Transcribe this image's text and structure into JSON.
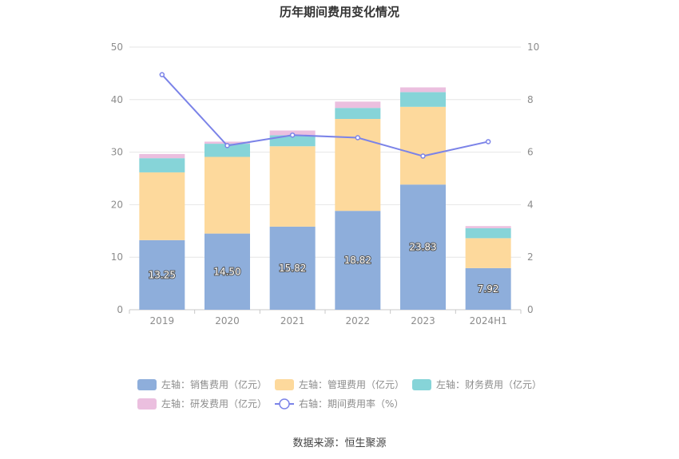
{
  "chart_data": {
    "type": "bar",
    "title": "历年期间费用变化情况",
    "categories": [
      "2019",
      "2020",
      "2021",
      "2022",
      "2023",
      "2024H1"
    ],
    "y_left": {
      "min": 0,
      "max": 50,
      "ticks": [
        "0",
        "10",
        "20",
        "30",
        "40",
        "50"
      ]
    },
    "y_right": {
      "min": 0,
      "max": 10,
      "ticks": [
        "0",
        "2",
        "4",
        "6",
        "8",
        "10"
      ]
    },
    "grid": true,
    "legend_position": "bottom",
    "series": [
      {
        "name": "左轴：销售费用（亿元）",
        "type": "bar",
        "stack": "total",
        "color": "#8eaedb",
        "values": [
          13.25,
          14.5,
          15.82,
          18.82,
          23.83,
          7.92
        ],
        "labels": [
          "13.25",
          "14.50",
          "15.82",
          "18.82",
          "23.83",
          "7.92"
        ]
      },
      {
        "name": "左轴：管理费用（亿元）",
        "type": "bar",
        "stack": "total",
        "color": "#fdd99c",
        "values": [
          12.9,
          14.6,
          15.3,
          17.5,
          14.8,
          5.7
        ]
      },
      {
        "name": "左轴：财务费用（亿元）",
        "type": "bar",
        "stack": "total",
        "color": "#86d4d8",
        "values": [
          2.7,
          2.5,
          2.1,
          2.1,
          2.8,
          1.9
        ]
      },
      {
        "name": "左轴：研发费用（亿元）",
        "type": "bar",
        "stack": "total",
        "color": "#ebbfdf",
        "values": [
          0.8,
          0.4,
          0.9,
          1.2,
          0.9,
          0.4
        ]
      },
      {
        "name": "右轴：期间费用率（%）",
        "type": "line",
        "axis": "right",
        "color": "#7b83e8",
        "values": [
          8.95,
          6.25,
          6.65,
          6.55,
          5.85,
          6.4
        ]
      }
    ]
  },
  "source": "数据来源：恒生聚源"
}
